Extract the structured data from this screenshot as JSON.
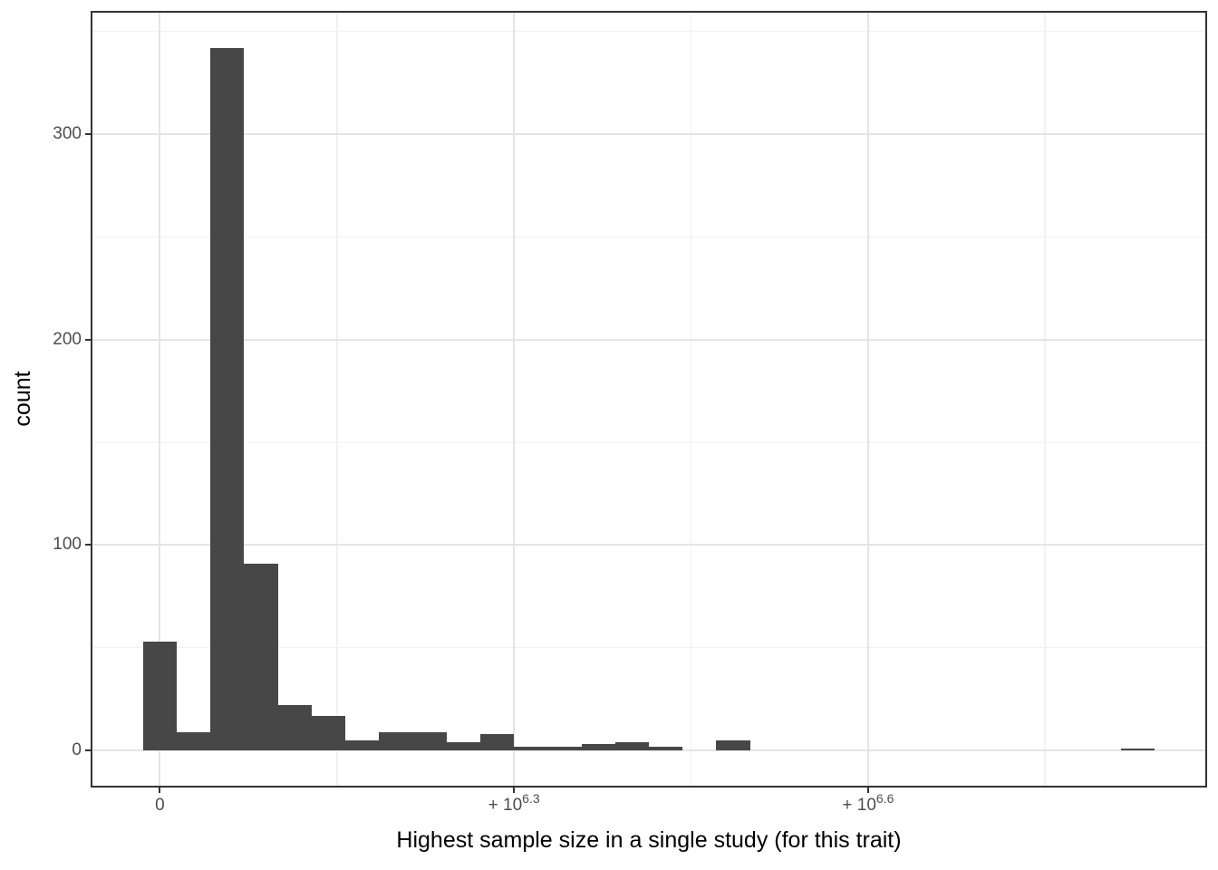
{
  "chart_data": {
    "type": "bar",
    "subtype": "histogram",
    "title": "",
    "xlabel": "Highest sample size in a single study (for this trait)",
    "ylabel": "count",
    "x_scale": "pseudo-log10 (signed log axis; labeled ticks 0, +10^6.3, +10^6.6; uniform spacing on transformed scale)",
    "x_axis": {
      "range_u": [
        -2,
        31
      ],
      "major_ticks": [
        {
          "base": "0",
          "sup": "",
          "u": 0
        },
        {
          "base": "+ 10",
          "sup": "6.3",
          "u": 10.5
        },
        {
          "base": "+ 10",
          "sup": "6.6",
          "u": 21
        }
      ],
      "minor_ticks_u": [
        5.25,
        15.75,
        26.25
      ]
    },
    "y_axis": {
      "range": [
        -17.1,
        359.1
      ],
      "major_ticks": [
        0,
        100,
        200,
        300
      ],
      "minor_ticks": [
        50,
        150,
        250,
        350
      ]
    },
    "bins": {
      "count": 30,
      "layout": "bin i centered at u=i, width 1, on transformed x scale",
      "values": [
        53,
        9,
        342,
        91,
        22,
        17,
        5,
        9,
        9,
        4,
        8,
        2,
        2,
        3,
        4,
        2,
        0,
        5,
        0,
        0,
        0,
        0,
        0,
        0,
        0,
        0,
        0,
        0,
        0,
        1
      ]
    },
    "grid": "major + minor gridlines, light gray on white, full panel border",
    "legend": false
  },
  "colors": {
    "background": "#FFFFFF",
    "bar_fill": "#474747",
    "panel_border": "#333333",
    "grid_major": "#E4E4E4",
    "grid_minor": "#F1F1F1",
    "tick_mark": "#333333",
    "tick_label": "#4D4D4D",
    "axis_title": "#000000"
  }
}
